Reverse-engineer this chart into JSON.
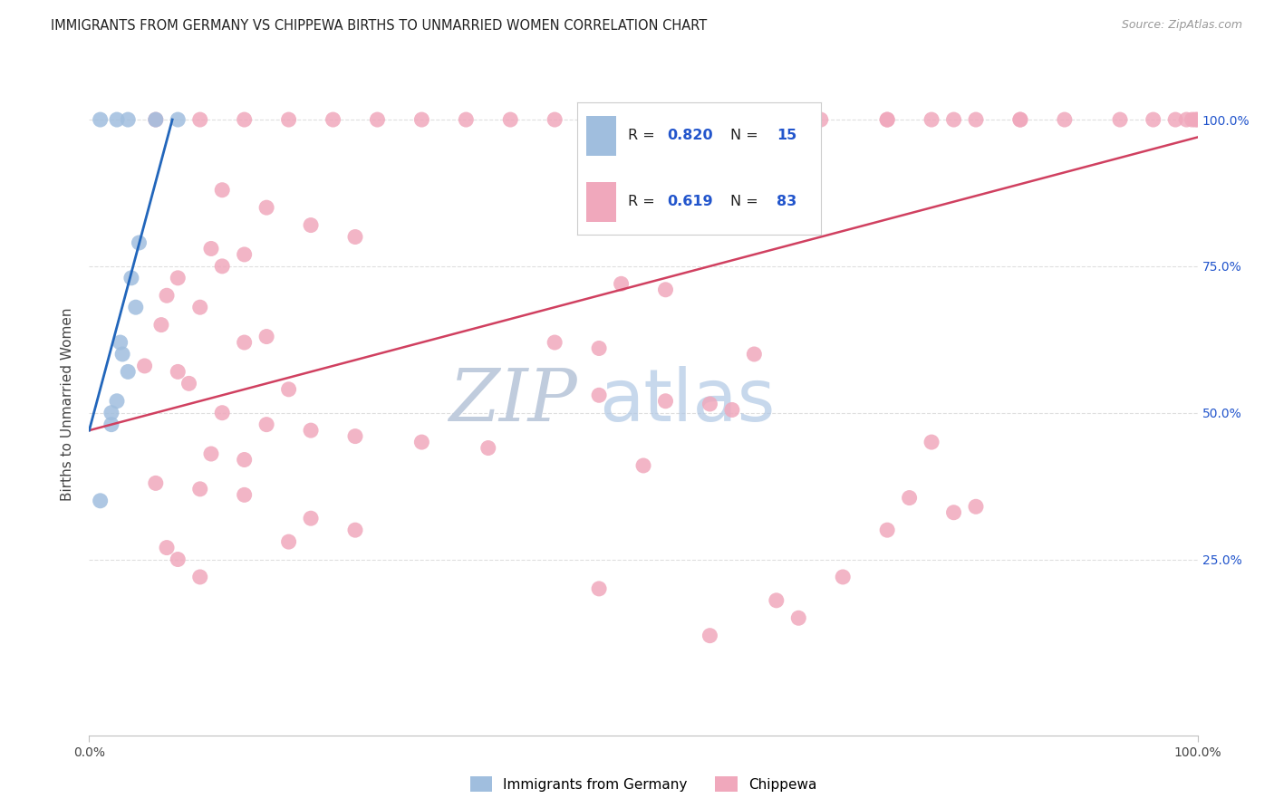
{
  "title": "IMMIGRANTS FROM GERMANY VS CHIPPEWA BIRTHS TO UNMARRIED WOMEN CORRELATION CHART",
  "source": "Source: ZipAtlas.com",
  "ylabel": "Births to Unmarried Women",
  "blue_color": "#a0bede",
  "pink_color": "#f0a8bc",
  "blue_line_color": "#2266bb",
  "pink_line_color": "#d04060",
  "watermark_zip_color": "#c8d4e8",
  "watermark_atlas_color": "#a8c4e0",
  "blue_R": "0.820",
  "blue_N": "15",
  "pink_R": "0.619",
  "pink_N": "83",
  "legend_label_blue": "Immigrants from Germany",
  "legend_label_pink": "Chippewa",
  "value_color": "#2255cc",
  "blue_scatter_x": [
    1.0,
    2.5,
    3.5,
    6.0,
    8.0,
    4.5,
    3.8,
    4.2,
    2.8,
    3.0,
    3.5,
    2.5,
    2.0,
    2.0,
    1.0
  ],
  "blue_scatter_y": [
    100.0,
    100.0,
    100.0,
    100.0,
    100.0,
    79.0,
    73.0,
    68.0,
    62.0,
    60.0,
    57.0,
    52.0,
    50.0,
    48.0,
    35.0
  ],
  "pink_scatter_x": [
    6.0,
    10.0,
    14.0,
    18.0,
    22.0,
    26.0,
    30.0,
    34.0,
    38.0,
    42.0,
    50.0,
    56.0,
    62.0,
    66.0,
    72.0,
    78.0,
    84.0,
    88.0,
    93.0,
    96.0,
    98.0,
    99.0,
    99.5,
    99.8,
    100.0,
    72.0,
    76.0,
    80.0,
    84.0,
    12.0,
    16.0,
    20.0,
    24.0,
    11.0,
    14.0,
    12.0,
    8.0,
    48.0,
    52.0,
    7.0,
    10.0,
    6.5,
    16.0,
    14.0,
    42.0,
    46.0,
    60.0,
    5.0,
    8.0,
    9.0,
    18.0,
    46.0,
    52.0,
    56.0,
    58.0,
    12.0,
    16.0,
    20.0,
    24.0,
    30.0,
    36.0,
    11.0,
    14.0,
    50.0,
    6.0,
    10.0,
    14.0,
    74.0,
    80.0,
    20.0,
    24.0,
    18.0,
    46.0,
    56.0,
    7.0,
    8.0,
    10.0,
    62.0,
    64.0,
    68.0,
    72.0,
    76.0,
    78.0
  ],
  "pink_scatter_y": [
    100.0,
    100.0,
    100.0,
    100.0,
    100.0,
    100.0,
    100.0,
    100.0,
    100.0,
    100.0,
    100.0,
    100.0,
    100.0,
    100.0,
    100.0,
    100.0,
    100.0,
    100.0,
    100.0,
    100.0,
    100.0,
    100.0,
    100.0,
    100.0,
    100.0,
    100.0,
    100.0,
    100.0,
    100.0,
    88.0,
    85.0,
    82.0,
    80.0,
    78.0,
    77.0,
    75.0,
    73.0,
    72.0,
    71.0,
    70.0,
    68.0,
    65.0,
    63.0,
    62.0,
    62.0,
    61.0,
    60.0,
    58.0,
    57.0,
    55.0,
    54.0,
    53.0,
    52.0,
    51.5,
    50.5,
    50.0,
    48.0,
    47.0,
    46.0,
    45.0,
    44.0,
    43.0,
    42.0,
    41.0,
    38.0,
    37.0,
    36.0,
    35.5,
    34.0,
    32.0,
    30.0,
    28.0,
    20.0,
    12.0,
    27.0,
    25.0,
    22.0,
    18.0,
    15.0,
    22.0,
    30.0,
    45.0,
    33.0
  ],
  "blue_line_x": [
    0.0,
    7.5
  ],
  "blue_line_y": [
    47.0,
    100.0
  ],
  "pink_line_x": [
    0.0,
    100.0
  ],
  "pink_line_y": [
    47.0,
    97.0
  ],
  "xlim": [
    0,
    100
  ],
  "ylim": [
    -5,
    108
  ],
  "yticks": [
    25,
    50,
    75,
    100
  ],
  "ytick_labels": [
    "25.0%",
    "50.0%",
    "75.0%",
    "100.0%"
  ]
}
